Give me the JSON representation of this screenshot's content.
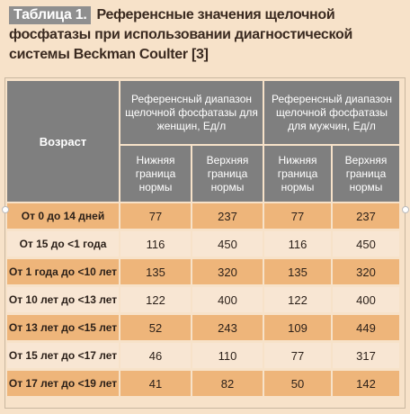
{
  "caption": {
    "label": "Таблица 1.",
    "text": "Референсные значения щелочной фосфатазы при использовании диагностической системы Beckman Coulter [3]"
  },
  "table": {
    "age_header": "Возраст",
    "women_header": "Референсный диапазон щелочной фосфатазы для женщин, Ед/л",
    "men_header": "Референсный диапазон щелочной фосфатазы для мужчин, Ед/л",
    "lower_label": "Нижняя граница нормы",
    "upper_label": "Верхняя граница нормы",
    "rows": [
      {
        "age": "От 0 до 14 дней",
        "w_low": "77",
        "w_high": "237",
        "m_low": "77",
        "m_high": "237"
      },
      {
        "age": "От 15 до <1 года",
        "w_low": "116",
        "w_high": "450",
        "m_low": "116",
        "m_high": "450"
      },
      {
        "age": "От 1 года до <10 лет",
        "w_low": "135",
        "w_high": "320",
        "m_low": "135",
        "m_high": "320"
      },
      {
        "age": "От 10 лет до <13 лет",
        "w_low": "122",
        "w_high": "400",
        "m_low": "122",
        "m_high": "400"
      },
      {
        "age": "От 13 лет до <15 лет",
        "w_low": "52",
        "w_high": "243",
        "m_low": "109",
        "m_high": "449"
      },
      {
        "age": "От 15 лет до <17 лет",
        "w_low": "46",
        "w_high": "110",
        "m_low": "77",
        "m_high": "317"
      },
      {
        "age": "От 17 лет до <19 лет",
        "w_low": "41",
        "w_high": "82",
        "m_low": "50",
        "m_high": "142"
      }
    ]
  },
  "colors": {
    "header_bg": "#7f7f7f",
    "row_orange": "#eeb57a",
    "row_light": "#f8e6d3",
    "page_bg": "#f7e2c9"
  }
}
